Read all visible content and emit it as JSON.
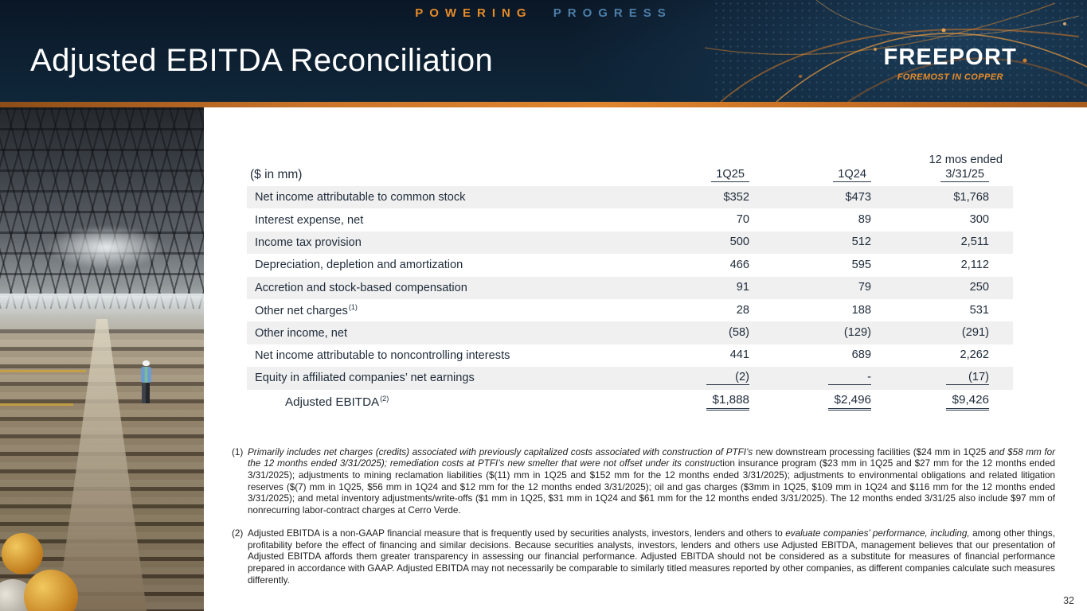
{
  "colors": {
    "navy": "#0d2032",
    "orange": "#e78b28",
    "steel_blue": "#4d7ea8",
    "stripe": "#f0f0f0",
    "text": "#1f2b3a"
  },
  "header": {
    "tagline_left": "POWERING",
    "tagline_right": "PROGRESS",
    "title": "Adjusted EBITDA Reconciliation",
    "logo_text": "FREEPORT",
    "logo_tagline": "FOREMOST IN COPPER"
  },
  "table": {
    "caption": "($ in mm)",
    "columns": [
      {
        "label": "1Q25"
      },
      {
        "label": "1Q24"
      },
      {
        "label": "12 mos ended",
        "label2": "3/31/25"
      }
    ],
    "rows": [
      {
        "label": "Net income attributable to common stock",
        "values": [
          "$352",
          "$473",
          "$1,768"
        ],
        "shaded": true
      },
      {
        "label": "Interest expense, net",
        "values": [
          "70",
          "89",
          "300"
        ],
        "shaded": false
      },
      {
        "label": "Income tax provision",
        "values": [
          "500",
          "512",
          "2,511"
        ],
        "shaded": true
      },
      {
        "label": "Depreciation, depletion and amortization",
        "values": [
          "466",
          "595",
          "2,112"
        ],
        "shaded": false
      },
      {
        "label": "Accretion and stock-based compensation",
        "values": [
          "91",
          "79",
          "250"
        ],
        "shaded": true
      },
      {
        "label": "Other net charges",
        "sup": "(1)",
        "values": [
          "28",
          "188",
          "531"
        ],
        "shaded": false
      },
      {
        "label": "Other income, net",
        "values": [
          "(58)",
          "(129)",
          "(291)"
        ],
        "shaded": true
      },
      {
        "label": "Net income attributable to noncontrolling interests",
        "values": [
          "441",
          "689",
          "2,262"
        ],
        "shaded": false
      },
      {
        "label": "Equity in affiliated companies’ net earnings",
        "values": [
          "(2)",
          "-",
          "(17)"
        ],
        "shaded": true,
        "underline_values": true
      },
      {
        "label": "Adjusted EBITDA",
        "sup": "(2)",
        "values": [
          "$1,888",
          "$2,496",
          "$9,426"
        ],
        "shaded": false,
        "total": true
      }
    ]
  },
  "footnotes": [
    {
      "marker": "(1)",
      "segments": [
        {
          "text": "Primarily includes net charges (credits) associated with previously capitalized costs associated with construction of PTFI’s ",
          "italic": true
        },
        {
          "text": "new downstream processing facilities ($24 mm in 1Q25 ",
          "italic": false
        },
        {
          "text": "and $58 mm for the 12 months ended 3/31/2025); remediation costs at PTFI’s new smelter that were not offset under its construc",
          "italic": true
        },
        {
          "text": "tion insurance program ($23 mm in 1Q25 and $27 mm for the 12 months ended 3/31/2025); adjustments to mining reclamation liabilities ($(11) mm in 1Q25 and $152 mm for the 12 months ended 3/31/2025); adjustments to environmental obligations and related litigation reserves ($(7) mm in 1Q25, $56 mm in 1Q24 and $12 mm for the 12 months ended 3/31/2025); oil and gas charges ($3mm in 1Q25, $109 mm in 1Q24 and $116 mm for the 12 months ended 3/31/2025); and metal inventory adjustments/write-offs ($1 mm in 1Q25, $31 mm in 1Q24 and $61 mm for the 12 months ended 3/31/2025). The 12 months ended 3/31/25 also include $97 mm of nonrecurring labor-contract charges at Cerro Verde.",
          "italic": false
        }
      ]
    },
    {
      "marker": "(2)",
      "segments": [
        {
          "text": "Adjusted EBITDA is a non-GAAP financial measure that is frequently used by securities analysts, investors, lenders and others to ",
          "italic": false
        },
        {
          "text": "evaluate companies’ performance, including,",
          "italic": true
        },
        {
          "text": " among other things, profitability before the effect of financing and similar decisions. Because securities analysts, investors, lenders and others use Adjusted EBITDA, management believes that our presentation of Adjusted EBITDA affords them greater transparency in assessing our financial performance. Adjusted EBITDA should not be considered as a substitute for measures of financial performance prepared in accordance with GAAP. Adjusted EBITDA may not necessarily be comparable to similarly titled measures reported by other companies, as different companies calculate such measures differently.",
          "italic": false
        }
      ]
    }
  ],
  "page_number": "32"
}
